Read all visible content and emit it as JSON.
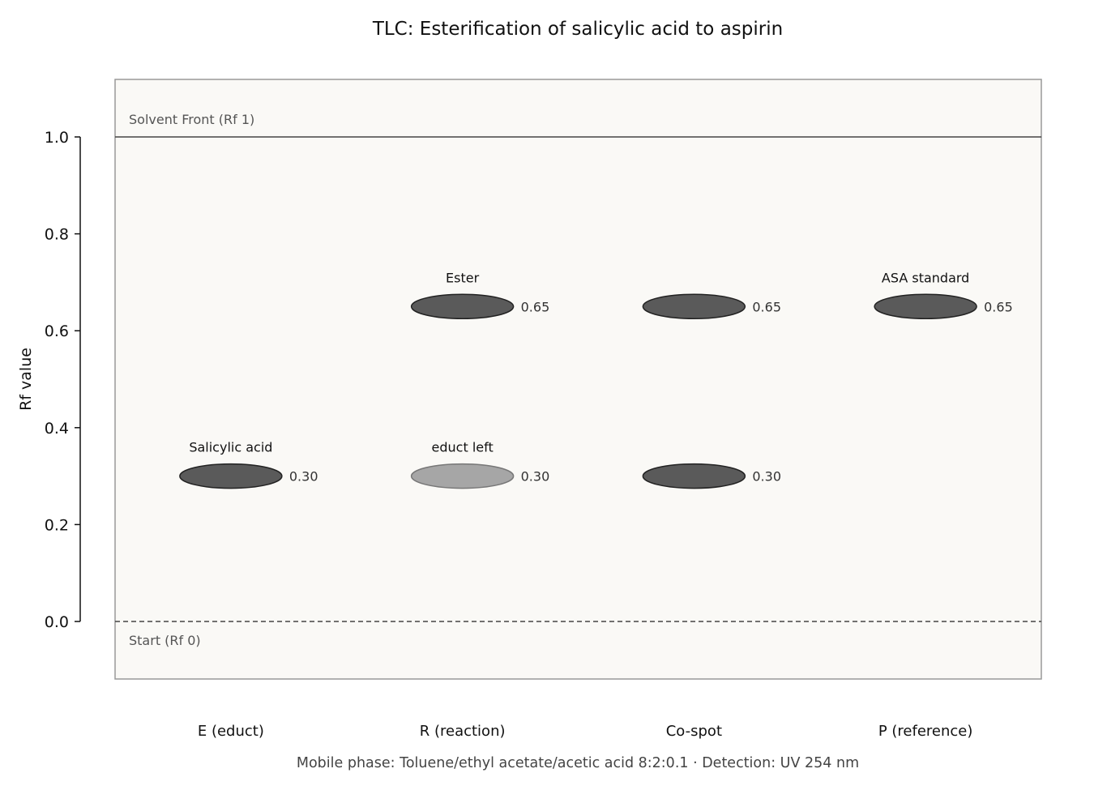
{
  "chart_data": {
    "type": "scatter",
    "title": "TLC: Esterification of salicylic acid to aspirin",
    "ylabel": "Rf value",
    "ylim": [
      -0.12,
      1.12
    ],
    "yticks": [
      "0.0",
      "0.2",
      "0.4",
      "0.6",
      "0.8",
      "1.0"
    ],
    "lanes": [
      "E (educt)",
      "R (reaction)",
      "Co-spot",
      "P (reference)"
    ],
    "solvent_front_label": "Solvent Front (Rf 1)",
    "start_label": "Start (Rf 0)",
    "spots": [
      {
        "lane": 0,
        "rf": 0.3,
        "value_label": "0.30",
        "name": "Salicylic acid",
        "intensity": "strong"
      },
      {
        "lane": 1,
        "rf": 0.65,
        "value_label": "0.65",
        "name": "Ester",
        "intensity": "strong"
      },
      {
        "lane": 1,
        "rf": 0.3,
        "value_label": "0.30",
        "name": "educt left",
        "intensity": "faint"
      },
      {
        "lane": 2,
        "rf": 0.65,
        "value_label": "0.65",
        "name": "",
        "intensity": "strong"
      },
      {
        "lane": 2,
        "rf": 0.3,
        "value_label": "0.30",
        "name": "",
        "intensity": "strong"
      },
      {
        "lane": 3,
        "rf": 0.65,
        "value_label": "0.65",
        "name": "ASA standard",
        "intensity": "strong"
      }
    ],
    "footnote": "Mobile phase: Toluene/ethyl acetate/acetic acid 8:2:0.1  ·  Detection: UV 254 nm",
    "colors": {
      "plate": "#faf9f6",
      "plate_border": "#999999",
      "spot_strong": "#5a5a5a",
      "spot_faint": "#a6a6a6"
    }
  }
}
